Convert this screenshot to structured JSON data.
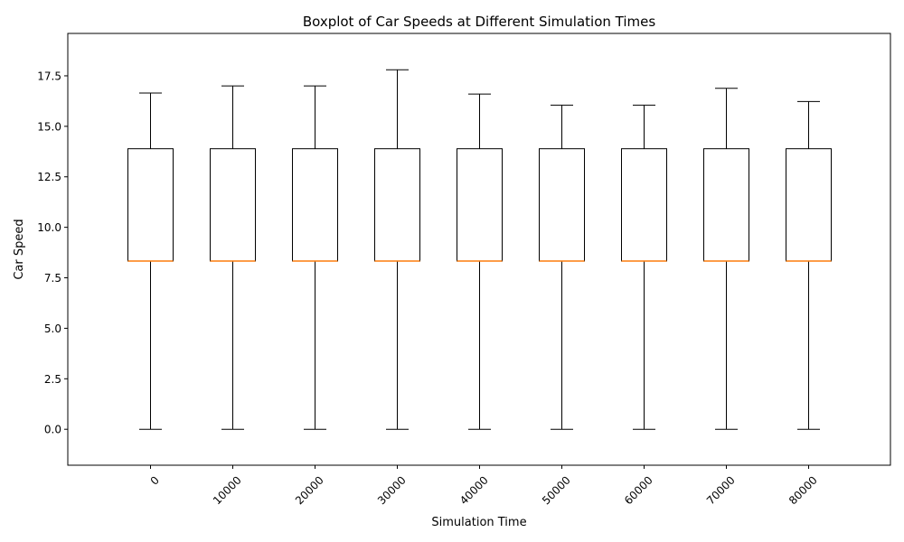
{
  "chart_data": {
    "type": "boxplot",
    "title": "Boxplot of Car Speeds at Different Simulation Times",
    "xlabel": "Simulation Time",
    "ylabel": "Car Speed",
    "ylim": [
      -1.78,
      19.6
    ],
    "yticks": [
      0.0,
      2.5,
      5.0,
      7.5,
      10.0,
      12.5,
      15.0,
      17.5
    ],
    "ytick_labels": [
      "0.0",
      "2.5",
      "5.0",
      "7.5",
      "10.0",
      "12.5",
      "15.0",
      "17.5"
    ],
    "xtick_rotation_deg": 45,
    "grid": false,
    "colors": {
      "box": "#000000",
      "median": "#ff7f0e",
      "axes": "#000000",
      "background": "#ffffff"
    },
    "categories": [
      "0",
      "10000",
      "20000",
      "30000",
      "40000",
      "50000",
      "60000",
      "70000",
      "80000"
    ],
    "boxes": [
      {
        "label": "0",
        "whisker_low": 0.0,
        "q1": 8.33,
        "median": 8.33,
        "q3": 13.89,
        "whisker_high": 16.65
      },
      {
        "label": "10000",
        "whisker_low": 0.0,
        "q1": 8.33,
        "median": 8.33,
        "q3": 13.89,
        "whisker_high": 17.0
      },
      {
        "label": "20000",
        "whisker_low": 0.0,
        "q1": 8.33,
        "median": 8.33,
        "q3": 13.89,
        "whisker_high": 17.0
      },
      {
        "label": "30000",
        "whisker_low": 0.0,
        "q1": 8.33,
        "median": 8.33,
        "q3": 13.89,
        "whisker_high": 17.8
      },
      {
        "label": "40000",
        "whisker_low": 0.0,
        "q1": 8.33,
        "median": 8.33,
        "q3": 13.89,
        "whisker_high": 16.6
      },
      {
        "label": "50000",
        "whisker_low": 0.0,
        "q1": 8.33,
        "median": 8.33,
        "q3": 13.89,
        "whisker_high": 16.05
      },
      {
        "label": "60000",
        "whisker_low": 0.0,
        "q1": 8.33,
        "median": 8.33,
        "q3": 13.89,
        "whisker_high": 16.05
      },
      {
        "label": "70000",
        "whisker_low": 0.0,
        "q1": 8.33,
        "median": 8.33,
        "q3": 13.89,
        "whisker_high": 16.88
      },
      {
        "label": "80000",
        "whisker_low": 0.0,
        "q1": 8.33,
        "median": 8.33,
        "q3": 13.89,
        "whisker_high": 16.23
      }
    ]
  }
}
